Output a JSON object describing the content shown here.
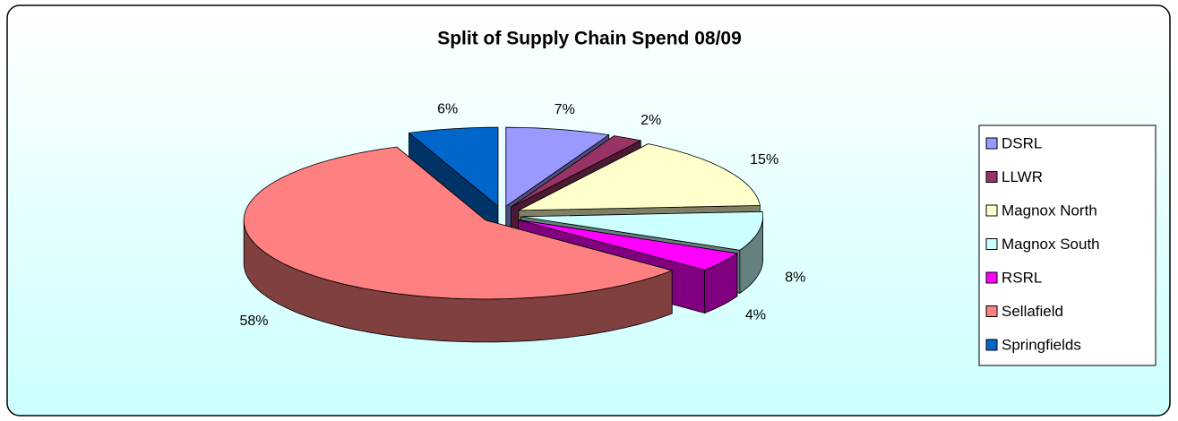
{
  "chart_data": {
    "type": "pie",
    "title": "Split of Supply Chain Spend 08/09",
    "categories": [
      "DSRL",
      "LLWR",
      "Magnox North",
      "Magnox South",
      "RSRL",
      "Sellafield",
      "Springfields"
    ],
    "values": [
      7,
      2,
      15,
      8,
      4,
      58,
      6
    ],
    "value_labels": [
      "7%",
      "2%",
      "15%",
      "8%",
      "4%",
      "58%",
      "6%"
    ],
    "colors": [
      "#9999ff",
      "#993366",
      "#ffffcc",
      "#ccffff",
      "#ff00ff",
      "#ff8080",
      "#0066cc"
    ],
    "legend": "right"
  }
}
